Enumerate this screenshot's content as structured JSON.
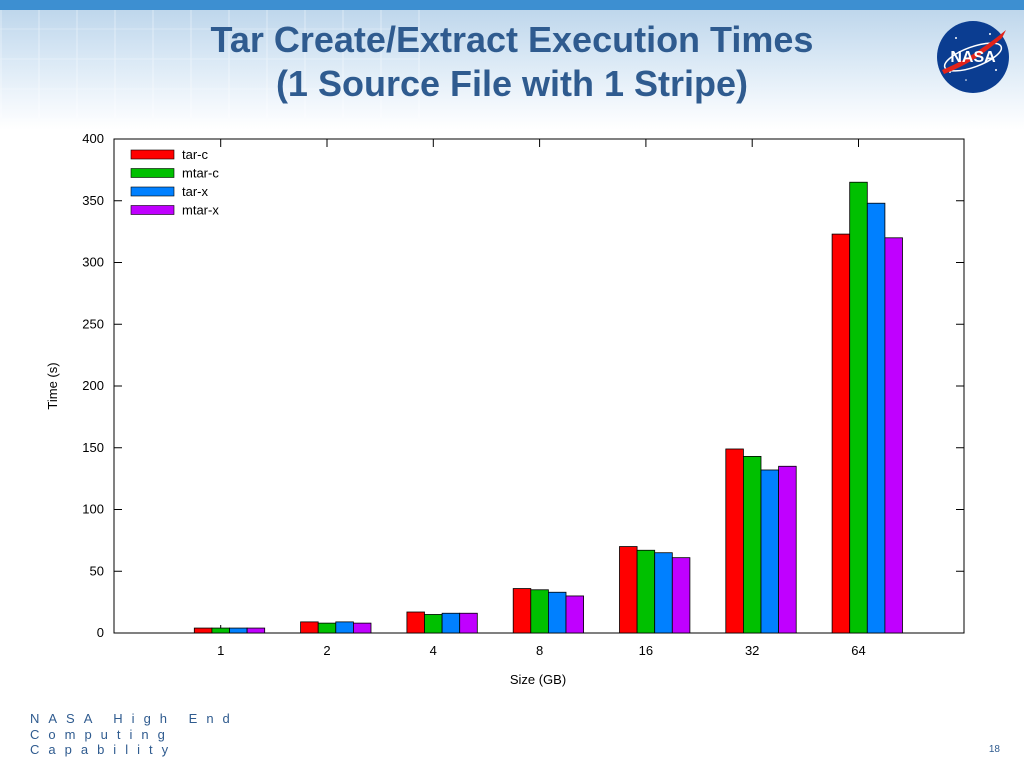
{
  "slide": {
    "title_line1": "Tar Create/Extract Execution Times",
    "title_line2": "(1 Source File with 1 Stripe)",
    "footer_line1": "NASA High End",
    "footer_line2": "Computing",
    "footer_line3": "Capability",
    "page_number": "18",
    "logo_text": "NASA"
  },
  "colors": {
    "title": "#2f5b8f",
    "header_stripe": "#3d8fd1",
    "logo_blue": "#0b3d91",
    "logo_red": "#e2231a"
  },
  "chart_data": {
    "type": "bar",
    "title": "",
    "xlabel": "Size (GB)",
    "ylabel": "Time (s)",
    "ylim": [
      0,
      400
    ],
    "yticks": [
      0,
      50,
      100,
      150,
      200,
      250,
      300,
      350,
      400
    ],
    "categories": [
      "1",
      "2",
      "4",
      "8",
      "16",
      "32",
      "64"
    ],
    "series": [
      {
        "name": "tar-c",
        "color": "#ff0000",
        "values": [
          4,
          9,
          17,
          36,
          70,
          149,
          323
        ]
      },
      {
        "name": "mtar-c",
        "color": "#00c000",
        "values": [
          4,
          8,
          15,
          35,
          67,
          143,
          365
        ]
      },
      {
        "name": "tar-x",
        "color": "#0080ff",
        "values": [
          4,
          9,
          16,
          33,
          65,
          132,
          348
        ]
      },
      {
        "name": "mtar-x",
        "color": "#c000ff",
        "values": [
          4,
          8,
          16,
          30,
          61,
          135,
          320
        ]
      }
    ],
    "grid": false,
    "legend": "top-left"
  }
}
